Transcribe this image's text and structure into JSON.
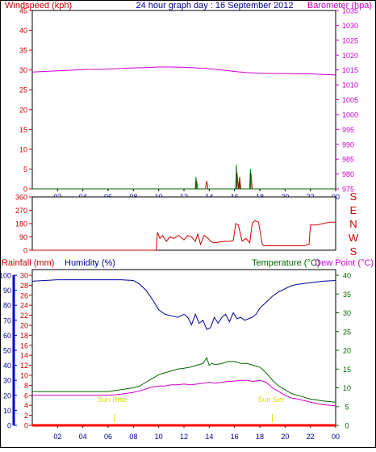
{
  "header": {
    "windspeed_label": "Windspeed (kph)",
    "title": "24 hour graph day : 16 September 2012",
    "barometer_label": "Barometer (hpa)"
  },
  "panel2": {
    "compass": [
      "S",
      "E",
      "N",
      "W",
      "S"
    ]
  },
  "panel3": {
    "rainfall_label": "Rainfall (mm)",
    "humidity_label": "Humidity (%)",
    "temperature_label": "Temperature (°C)",
    "dewpoint_label": "Dew Point (°C)",
    "sunrise_label": "Sun Rise",
    "sunset_label": "Sun Set"
  },
  "colors": {
    "wind": "#cc0000",
    "gust": "#006600",
    "barometer": "#cc00cc",
    "direction": "#cc0000",
    "humidity": "#000099",
    "temperature": "#006600",
    "dewpoint": "#cc00cc",
    "rain": "#ff0000",
    "sun": "#dddd00"
  },
  "chart_data": [
    {
      "type": "line",
      "name": "windspeed-barometer",
      "x_ticks": [
        "02",
        "04",
        "06",
        "08",
        "10",
        "12",
        "14",
        "16",
        "18",
        "20",
        "22",
        "00"
      ],
      "x_range": [
        0,
        24
      ],
      "windspeed_axis": {
        "ylim": [
          0,
          45
        ],
        "ticks": [
          0,
          5,
          10,
          15,
          20,
          25,
          30,
          35,
          40,
          45
        ]
      },
      "barometer_axis": {
        "ylim": [
          975,
          1035
        ],
        "ticks": [
          975,
          980,
          985,
          990,
          995,
          1000,
          1005,
          1010,
          1015,
          1020,
          1025,
          1030,
          1035
        ]
      },
      "barometer": {
        "x": [
          0,
          1,
          2,
          3,
          4,
          5,
          6,
          7,
          8,
          9,
          10,
          11,
          12,
          13,
          14,
          15,
          16,
          17,
          18,
          19,
          20,
          21,
          22,
          23,
          24
        ],
        "y": [
          1014.3,
          1014.5,
          1014.7,
          1014.9,
          1015.1,
          1015.2,
          1015.3,
          1015.5,
          1015.7,
          1015.8,
          1016,
          1016,
          1015.9,
          1015.7,
          1015.4,
          1015,
          1014.5,
          1014.1,
          1013.9,
          1013.8,
          1013.8,
          1013.7,
          1013.7,
          1013.5,
          1013.3
        ]
      },
      "windspeed": {
        "x": [
          0,
          12.9,
          13.0,
          13.1,
          13.7,
          13.8,
          13.9,
          16.1,
          16.2,
          16.3,
          16.4,
          16.5,
          17.2,
          17.3,
          17.4,
          24
        ],
        "y": [
          0,
          0,
          2,
          0,
          0,
          2,
          0,
          0,
          4,
          0,
          3,
          0,
          0,
          4,
          0,
          0
        ]
      },
      "gust": {
        "x": [
          0,
          12.9,
          12.95,
          13.0,
          16.1,
          16.15,
          16.2,
          16.35,
          16.4,
          16.45,
          17.2,
          17.25,
          17.3,
          24
        ],
        "y": [
          0,
          0,
          3,
          0,
          0,
          6,
          0,
          0,
          2,
          0,
          0,
          5,
          0,
          0
        ]
      }
    },
    {
      "type": "line",
      "name": "wind-direction",
      "x_range": [
        0,
        24
      ],
      "ylim": [
        0,
        360
      ],
      "ticks": [
        0,
        90,
        180,
        270,
        360
      ],
      "direction": {
        "x": [
          0,
          9.8,
          9.9,
          10.1,
          10.3,
          10.6,
          10.9,
          11.2,
          11.6,
          12.0,
          12.3,
          12.6,
          12.9,
          13.1,
          13.3,
          13.6,
          13.9,
          14.1,
          14.4,
          14.8,
          15.2,
          15.6,
          15.9,
          16.1,
          16.3,
          16.6,
          16.9,
          17.2,
          17.4,
          17.6,
          17.9,
          18.2,
          18.3,
          19.5,
          20.5,
          21.5,
          21.9,
          22.0,
          22.5,
          23.0,
          23.5,
          24
        ],
        "y": [
          0,
          0,
          120,
          80,
          100,
          60,
          90,
          80,
          100,
          70,
          100,
          90,
          60,
          110,
          40,
          100,
          80,
          60,
          50,
          55,
          60,
          60,
          65,
          180,
          170,
          60,
          80,
          50,
          180,
          200,
          190,
          40,
          30,
          30,
          30,
          30,
          40,
          170,
          170,
          180,
          190,
          190
        ]
      }
    },
    {
      "type": "line",
      "name": "rain-humidity-temperature-dewpoint",
      "x_range": [
        0,
        24
      ],
      "humidity_axis": {
        "ylim": [
          0,
          100
        ],
        "ticks": [
          0,
          10,
          20,
          30,
          40,
          50,
          60,
          70,
          80,
          90,
          100
        ]
      },
      "rainfall_axis": {
        "ylim": [
          0,
          30
        ],
        "ticks": [
          0,
          2,
          4,
          6,
          8,
          10,
          12,
          14,
          16,
          18,
          20,
          22,
          24,
          26,
          28,
          30
        ]
      },
      "temperature_axis": {
        "ylim": [
          0,
          40
        ],
        "ticks": [
          0,
          5,
          10,
          15,
          20,
          25,
          30,
          35,
          40
        ]
      },
      "humidity": {
        "x": [
          0,
          1,
          2,
          3,
          4,
          5,
          6,
          7,
          8,
          8.5,
          9,
          9.5,
          10,
          10.5,
          11,
          11.5,
          12,
          12.3,
          12.6,
          12.9,
          13.2,
          13.5,
          13.8,
          14.1,
          14.4,
          14.7,
          15,
          15.3,
          15.6,
          15.9,
          16.2,
          16.5,
          16.8,
          17.1,
          17.4,
          17.7,
          18,
          18.5,
          19,
          19.5,
          20,
          20.5,
          21,
          22,
          23,
          24
        ],
        "y": [
          96,
          96.5,
          97,
          97,
          97,
          97,
          97,
          97,
          96.5,
          94,
          90,
          84,
          77,
          74,
          73,
          72,
          74,
          72,
          67,
          74,
          68,
          70,
          64,
          65,
          72,
          68,
          72,
          74,
          69,
          75,
          71,
          72,
          70,
          71,
          72,
          74,
          78,
          82,
          86,
          89,
          91,
          93,
          94,
          95,
          96,
          96.5
        ]
      },
      "temperature": {
        "x": [
          0,
          1,
          2,
          3,
          4,
          5,
          6,
          7,
          8,
          8.5,
          9,
          9.5,
          10,
          10.5,
          11,
          11.5,
          12,
          12.5,
          13,
          13.5,
          13.8,
          14,
          14.2,
          14.5,
          15,
          15.5,
          16,
          16.5,
          17,
          17.5,
          18,
          18.5,
          19,
          19.5,
          20,
          20.5,
          21,
          22,
          23,
          24
        ],
        "y": [
          9,
          9,
          9,
          9,
          9,
          9,
          9,
          9.5,
          10,
          10.5,
          11.5,
          12.5,
          13.5,
          14,
          14.5,
          15,
          15.2,
          15.5,
          16,
          16.5,
          18,
          16,
          16.5,
          16.2,
          16.5,
          17,
          17,
          16.5,
          16.5,
          16,
          15.5,
          14,
          12,
          10.5,
          9.5,
          8.5,
          8,
          7,
          6.5,
          6.2
        ]
      },
      "dewpoint": {
        "x": [
          0,
          1,
          2,
          3,
          4,
          5,
          6,
          7,
          8,
          8.5,
          9,
          9.5,
          10,
          10.5,
          11,
          11.5,
          12,
          12.5,
          13,
          13.5,
          14,
          14.5,
          15,
          15.5,
          16,
          16.5,
          17,
          17.5,
          18,
          18.5,
          19,
          19.5,
          20,
          20.5,
          21,
          22,
          23,
          24
        ],
        "y": [
          8,
          8,
          8,
          8,
          8,
          8,
          8,
          8.3,
          8.8,
          9.2,
          9.7,
          10.2,
          10.5,
          10.5,
          10.8,
          10.8,
          11,
          10.8,
          11,
          11.2,
          11.5,
          11.2,
          11.5,
          11.7,
          11.8,
          12,
          12,
          11.7,
          12,
          11.5,
          10,
          9,
          8,
          7.3,
          7,
          6.2,
          5.5,
          5.2
        ]
      },
      "rainfall": {
        "x": [
          0,
          24
        ],
        "y": [
          0,
          0
        ]
      },
      "sunrise_hour": 6.5,
      "sunset_hour": 19
    }
  ]
}
